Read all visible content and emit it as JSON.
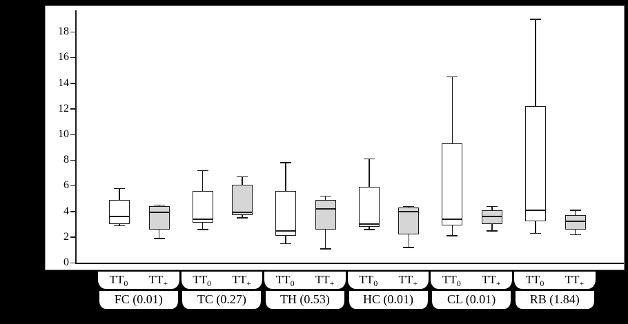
{
  "figure": {
    "background": "#000000",
    "panel_background": "#ffffff",
    "axis_color": "#1a1a1a"
  },
  "chart_data": {
    "type": "boxplot",
    "title": "",
    "xlabel": "",
    "ylabel": "",
    "ylim": [
      0,
      19.5
    ],
    "yticks": [
      0,
      2,
      4,
      6,
      8,
      10,
      12,
      14,
      16,
      18
    ],
    "grid": false,
    "legend": "none",
    "conditions": [
      {
        "id": "TT0",
        "base": "TT",
        "sub": "0",
        "fill": "#ffffff"
      },
      {
        "id": "TT+",
        "base": "TT",
        "sub": "+",
        "fill": "#d6d6d6"
      }
    ],
    "groups": [
      {
        "label": "FC (0.01)",
        "boxes": [
          {
            "condition": "TT0",
            "min": 2.9,
            "q1": 3.0,
            "median": 3.6,
            "q3": 4.9,
            "max": 5.8
          },
          {
            "condition": "TT+",
            "min": 1.9,
            "q1": 2.6,
            "median": 3.9,
            "q3": 4.4,
            "max": 4.5
          }
        ]
      },
      {
        "label": "TC (0.27)",
        "boxes": [
          {
            "condition": "TT0",
            "min": 2.6,
            "q1": 3.1,
            "median": 3.4,
            "q3": 5.6,
            "max": 7.2
          },
          {
            "condition": "TT+",
            "min": 3.5,
            "q1": 3.7,
            "median": 3.9,
            "q3": 6.1,
            "max": 6.7
          }
        ]
      },
      {
        "label": "TH (0.53)",
        "boxes": [
          {
            "condition": "TT0",
            "min": 1.5,
            "q1": 2.1,
            "median": 2.5,
            "q3": 5.6,
            "max": 7.8
          },
          {
            "condition": "TT+",
            "min": 1.1,
            "q1": 2.6,
            "median": 4.2,
            "q3": 4.9,
            "max": 5.2
          }
        ]
      },
      {
        "label": "HC (0.01)",
        "boxes": [
          {
            "condition": "TT0",
            "min": 2.6,
            "q1": 2.8,
            "median": 3.0,
            "q3": 5.9,
            "max": 8.1
          },
          {
            "condition": "TT+",
            "min": 1.2,
            "q1": 2.2,
            "median": 4.0,
            "q3": 4.3,
            "max": 4.4
          }
        ]
      },
      {
        "label": "CL (0.01)",
        "boxes": [
          {
            "condition": "TT0",
            "min": 2.1,
            "q1": 2.9,
            "median": 3.4,
            "q3": 9.3,
            "max": 14.5
          },
          {
            "condition": "TT+",
            "min": 2.5,
            "q1": 3.0,
            "median": 3.6,
            "q3": 4.1,
            "max": 4.4
          }
        ]
      },
      {
        "label": "RB (1.84)",
        "boxes": [
          {
            "condition": "TT0",
            "min": 2.3,
            "q1": 3.2,
            "median": 4.1,
            "q3": 12.2,
            "max": 19.0
          },
          {
            "condition": "TT+",
            "min": 2.2,
            "q1": 2.6,
            "median": 3.2,
            "q3": 3.7,
            "max": 4.1
          }
        ]
      }
    ]
  }
}
